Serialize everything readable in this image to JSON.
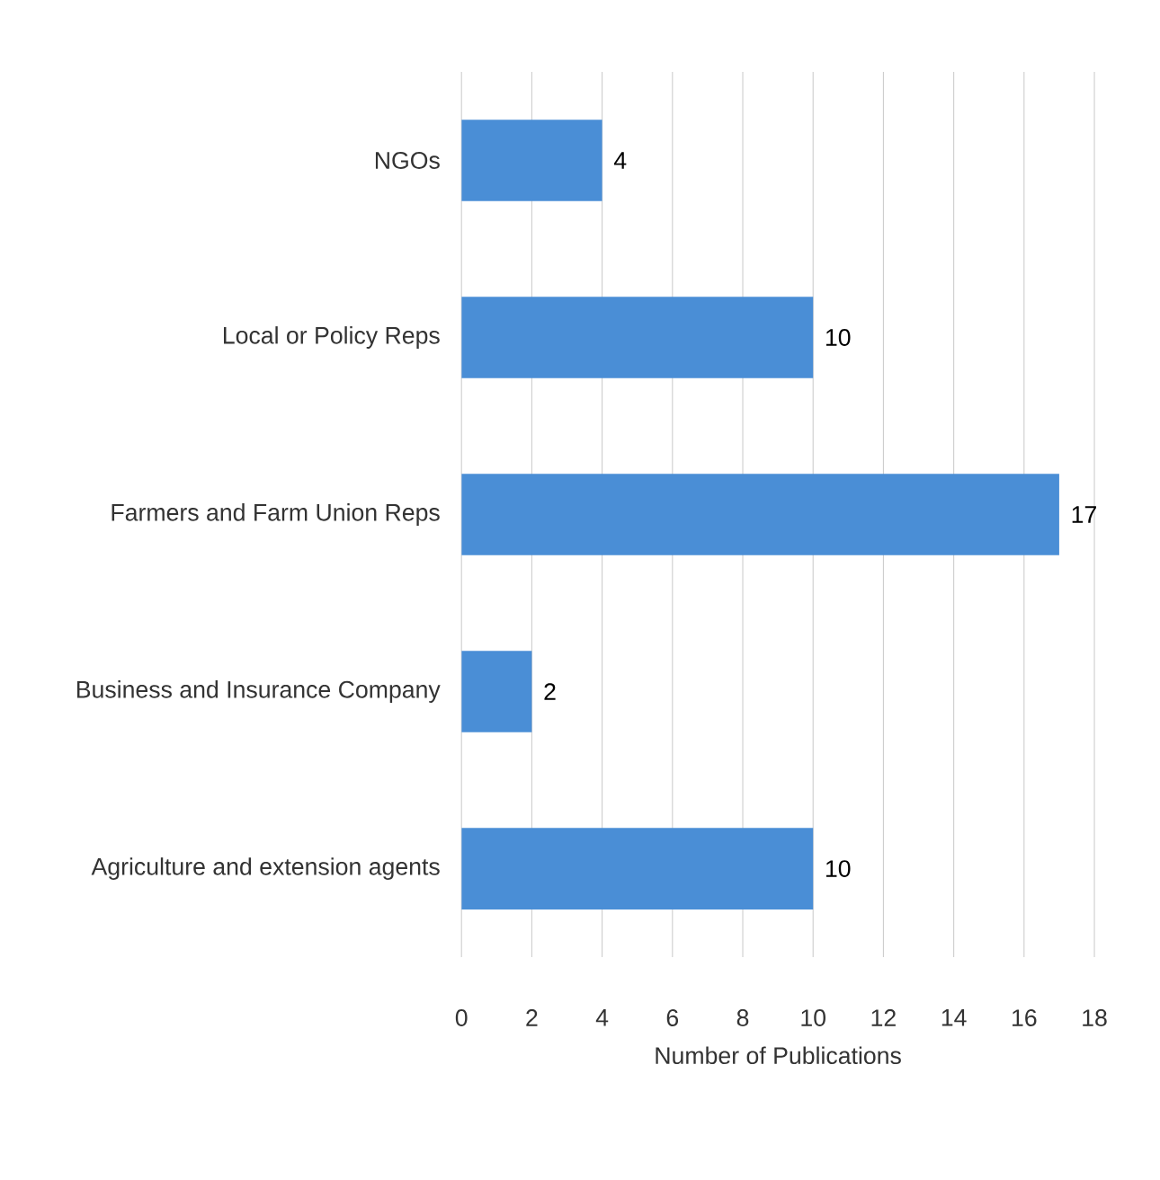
{
  "chart_data": {
    "type": "bar",
    "orientation": "horizontal",
    "xlabel": "Number of Publications",
    "categories": [
      "NGOs",
      "Local or Policy Reps",
      "Farmers and Farm Union Reps",
      "Business and Insurance Company",
      "Agriculture and extension agents"
    ],
    "values": [
      4,
      10,
      17,
      2,
      10
    ],
    "color": "#4a8ed6",
    "xlim": [
      0,
      18
    ],
    "xticks": [
      0,
      2,
      4,
      6,
      8,
      10,
      12,
      14,
      16,
      18
    ],
    "grid": "x",
    "data_labels": true
  }
}
